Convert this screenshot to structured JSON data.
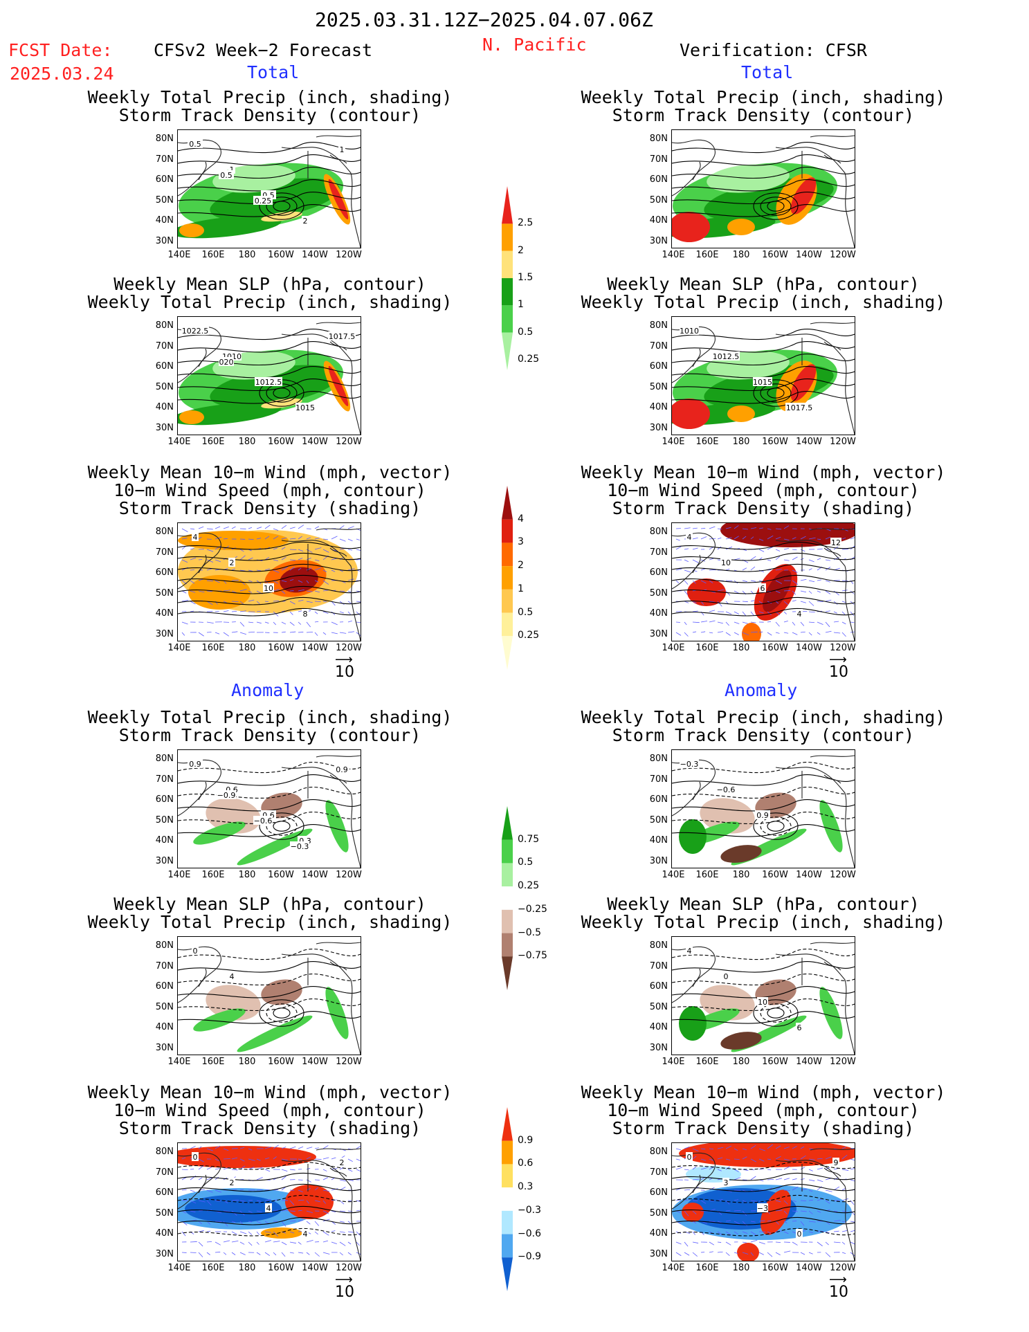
{
  "header": {
    "period": "2025.03.31.12Z−2025.04.07.06Z",
    "fcst_label": "FCST Date:",
    "fcst_date": "2025.03.24",
    "forecast_title": "CFSv2 Week−2 Forecast",
    "region": "N. Pacific",
    "verification_title": "Verification: CFSR"
  },
  "sections": {
    "total": "Total",
    "anomaly": "Anomaly"
  },
  "panel_titles": {
    "precip_storm": [
      "Weekly Total Precip (inch, shading)",
      "Storm Track Density (contour)"
    ],
    "slp_precip": [
      "Weekly Mean SLP (hPa, contour)",
      "Weekly Total Precip (inch, shading)"
    ],
    "wind_storm": [
      "Weekly Mean 10−m Wind (mph, vector)",
      "10−m Wind Speed (mph, contour)",
      "Storm Track Density (shading)"
    ]
  },
  "axes": {
    "lat_ticks": [
      "80N",
      "70N",
      "60N",
      "50N",
      "40N",
      "30N"
    ],
    "lon_ticks": [
      "140E",
      "160E",
      "180",
      "160W",
      "140W",
      "120W"
    ]
  },
  "vector_ref": "10",
  "colorbars": {
    "precip_total": {
      "labels": [
        "2.5",
        "2",
        "1.5",
        "1",
        "0.5",
        "0.25"
      ],
      "colors": [
        "#e8231c",
        "#ffa000",
        "#ffe27a",
        "#18a018",
        "#4ad04a",
        "#a8f0a0"
      ]
    },
    "storm_total": {
      "labels": [
        "4",
        "3",
        "2",
        "1",
        "0.5",
        "0.25"
      ],
      "colors": [
        "#9c0f0f",
        "#e02010",
        "#ff6a00",
        "#ffa000",
        "#ffc850",
        "#fff09a",
        "#fffcd0"
      ]
    },
    "precip_anom": {
      "labels": [
        "0.75",
        "0.5",
        "0.25",
        "−0.25",
        "−0.5",
        "−0.75"
      ],
      "colors": [
        "#18a018",
        "#4ad04a",
        "#a8f0a0",
        "#ffffff",
        "#e0c0b0",
        "#b08070",
        "#6a3a2a"
      ]
    },
    "storm_anom": {
      "labels": [
        "0.9",
        "0.6",
        "0.3",
        "−0.3",
        "−0.6",
        "−0.9"
      ],
      "colors": [
        "#ee3010",
        "#ffa000",
        "#ffe060",
        "#ffffff",
        "#b0e8ff",
        "#50a8f0",
        "#1060d0"
      ]
    }
  },
  "chart_data": [
    {
      "type": "heatmap",
      "id": "fcst-total-precip-storm",
      "title": "Weekly Total Precip (inch, shading) / Storm Track Density (contour)",
      "contour_labels": [
        "0.5",
        "1",
        "0.5",
        "2",
        "1",
        "0.5",
        "0.25"
      ]
    },
    {
      "type": "heatmap",
      "id": "cfsr-total-precip-storm",
      "title": "Weekly Total Precip (inch, shading) / Storm Track Density (contour)",
      "contour_labels": []
    },
    {
      "type": "heatmap",
      "id": "fcst-total-slp-precip",
      "title": "Weekly Mean SLP (hPa, contour) / Weekly Total Precip (inch, shading)",
      "contour_labels": [
        "1022.5",
        "1010",
        "1012.5",
        "1015",
        "1017.5",
        "020"
      ]
    },
    {
      "type": "heatmap",
      "id": "cfsr-total-slp-precip",
      "title": "Weekly Mean SLP (hPa, contour) / Weekly Total Precip (inch, shading)",
      "contour_labels": [
        "1010",
        "1012.5",
        "1015",
        "1017.5"
      ]
    },
    {
      "type": "heatmap",
      "id": "fcst-total-wind-storm",
      "title": "Weekly Mean 10-m Wind / 10-m Wind Speed / Storm Track Density",
      "contour_labels": [
        "4",
        "2",
        "10",
        "8"
      ]
    },
    {
      "type": "heatmap",
      "id": "cfsr-total-wind-storm",
      "title": "Weekly Mean 10-m Wind / 10-m Wind Speed / Storm Track Density",
      "contour_labels": [
        "4",
        "10",
        "6",
        "4",
        "12"
      ]
    },
    {
      "type": "heatmap",
      "id": "fcst-anom-precip-storm",
      "title": "Weekly Total Precip (inch, shading) / Storm Track Density (contour)",
      "contour_labels": [
        "0.9",
        "0.6",
        "0.6",
        "0.3",
        "0.9",
        "−0.9",
        "−0.6",
        "−0.3"
      ]
    },
    {
      "type": "heatmap",
      "id": "cfsr-anom-precip-storm",
      "title": "Weekly Total Precip (inch, shading) / Storm Track Density (contour)",
      "contour_labels": [
        "−0.3",
        "−0.6",
        "0.9"
      ]
    },
    {
      "type": "heatmap",
      "id": "fcst-anom-slp-precip",
      "title": "Weekly Mean SLP (hPa, contour) / Weekly Total Precip (inch, shading)",
      "contour_labels": [
        "0",
        "4"
      ]
    },
    {
      "type": "heatmap",
      "id": "cfsr-anom-slp-precip",
      "title": "Weekly Mean SLP (hPa, contour) / Weekly Total Precip (inch, shading)",
      "contour_labels": [
        "4",
        "0",
        "10",
        "6"
      ]
    },
    {
      "type": "heatmap",
      "id": "fcst-anom-wind-storm",
      "title": "Weekly Mean 10-m Wind / 10-m Wind Speed / Storm Track Density",
      "contour_labels": [
        "0",
        "2",
        "4",
        "4",
        "2"
      ]
    },
    {
      "type": "heatmap",
      "id": "cfsr-anom-wind-storm",
      "title": "Weekly Mean 10-m Wind / 10-m Wind Speed / Storm Track Density",
      "contour_labels": [
        "0",
        "3",
        "−3",
        "0",
        "9"
      ]
    }
  ]
}
